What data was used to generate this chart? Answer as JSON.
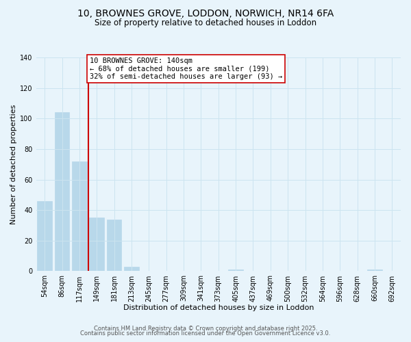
{
  "title_line1": "10, BROWNES GROVE, LODDON, NORWICH, NR14 6FA",
  "title_line2": "Size of property relative to detached houses in Loddon",
  "xlabel": "Distribution of detached houses by size in Loddon",
  "ylabel": "Number of detached properties",
  "bar_labels": [
    "54sqm",
    "86sqm",
    "117sqm",
    "149sqm",
    "181sqm",
    "213sqm",
    "245sqm",
    "277sqm",
    "309sqm",
    "341sqm",
    "373sqm",
    "405sqm",
    "437sqm",
    "469sqm",
    "500sqm",
    "532sqm",
    "564sqm",
    "596sqm",
    "628sqm",
    "660sqm",
    "692sqm"
  ],
  "bar_values": [
    46,
    104,
    72,
    35,
    34,
    3,
    0,
    0,
    0,
    0,
    0,
    1,
    0,
    0,
    0,
    0,
    0,
    0,
    0,
    1,
    0
  ],
  "bar_color": "#b8d8ea",
  "bar_edge_color": "#b8d8ea",
  "vline_x": 2.5,
  "vline_color": "#cc0000",
  "annotation_line1": "10 BROWNES GROVE: 140sqm",
  "annotation_line2": "← 68% of detached houses are smaller (199)",
  "annotation_line3": "32% of semi-detached houses are larger (93) →",
  "annotation_box_edgecolor": "#cc0000",
  "annotation_box_facecolor": "#ffffff",
  "ylim": [
    0,
    140
  ],
  "yticks": [
    0,
    20,
    40,
    60,
    80,
    100,
    120,
    140
  ],
  "grid_color": "#cce4f0",
  "background_color": "#e8f4fb",
  "footer_line1": "Contains HM Land Registry data © Crown copyright and database right 2025.",
  "footer_line2": "Contains public sector information licensed under the Open Government Licence v3.0.",
  "title_fontsize": 10,
  "subtitle_fontsize": 8.5,
  "xlabel_fontsize": 8,
  "ylabel_fontsize": 8,
  "tick_fontsize": 7,
  "annotation_fontsize": 7.5,
  "footer_fontsize": 6
}
